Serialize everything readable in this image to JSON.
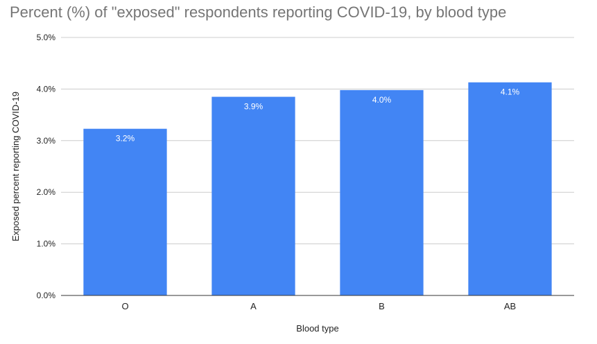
{
  "chart_data": {
    "type": "bar",
    "title": "Percent (%) of \"exposed\" respondents reporting COVID-19, by blood type",
    "xlabel": "Blood type",
    "ylabel": "Exposed percent reporting COVID-19",
    "categories": [
      "O",
      "A",
      "B",
      "AB"
    ],
    "values": [
      3.23,
      3.85,
      3.98,
      4.13
    ],
    "data_labels": [
      "3.2%",
      "3.9%",
      "4.0%",
      "4.1%"
    ],
    "ylim": [
      0,
      5
    ],
    "yticks": [
      0,
      1,
      2,
      3,
      4,
      5
    ],
    "ytick_labels": [
      "0.0%",
      "1.0%",
      "2.0%",
      "3.0%",
      "4.0%",
      "5.0%"
    ],
    "grid": true,
    "legend": "none",
    "colors": {
      "bar": "#4285f4",
      "data_label": "#ffffff",
      "title": "#757575",
      "grid": "#cccccc",
      "axis": "#333333",
      "text": "#222222"
    }
  }
}
